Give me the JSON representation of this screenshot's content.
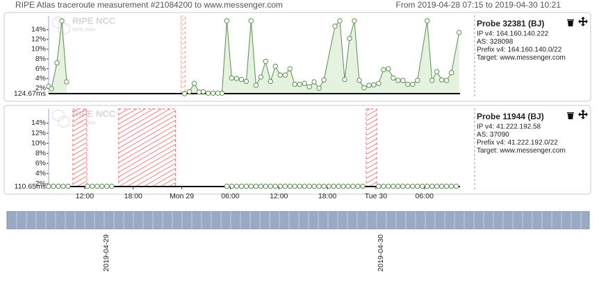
{
  "header": {
    "title": "RIPE Atlas traceroute measurement #21084200 to www.messenger.com",
    "range": "From 2019-04-28 07:15 to 2019-04-30 10:21"
  },
  "xaxis": {
    "xlim": [
      7.54,
      58.4
    ],
    "xticks": [
      {
        "value": 12,
        "label": "12:00"
      },
      {
        "value": 18,
        "label": "18:00"
      },
      {
        "value": 24,
        "label": "Mon 29"
      },
      {
        "value": 30,
        "label": "06:00"
      },
      {
        "value": 36,
        "label": "12:00"
      },
      {
        "value": 42,
        "label": "18:00"
      },
      {
        "value": 48,
        "label": "Tue 30"
      },
      {
        "value": 54,
        "label": "06:00"
      }
    ]
  },
  "probes": [
    {
      "name": "Probe 32381 (BJ)",
      "ip": "IP v4: 164.160.140.222",
      "as": "AS: 328098",
      "prefix": "Prefix v4: 164.160.140.0/22",
      "target": "Target: www.messenger.com",
      "chart": {
        "type": "line",
        "watermark": "RIPE NCC",
        "watermark_sub": "RIPE Atlas",
        "baseline_label": "124.67ms",
        "color": "#5b8f4f",
        "fill": "#e4f2df",
        "ylim": [
          0.9,
          16.8
        ],
        "yticks": [
          {
            "value": 2,
            "label": "2%"
          },
          {
            "value": 4,
            "label": "4%"
          },
          {
            "value": 6,
            "label": "6%"
          },
          {
            "value": 8,
            "label": "8%"
          },
          {
            "value": 10,
            "label": "10%"
          },
          {
            "value": 12,
            "label": "12%"
          },
          {
            "value": 14,
            "label": "14%"
          }
        ],
        "outages": [
          [
            23.91,
            24.43
          ]
        ],
        "x": [
          7.54,
          7.89,
          8.57,
          9.17,
          9.77,
          17,
          24.34,
          24.94,
          25.54,
          26.14,
          26.66,
          27.26,
          27.86,
          28.46,
          28.97,
          29.57,
          30.17,
          30.77,
          31.37,
          31.97,
          32.57,
          33.17,
          33.77,
          34.37,
          34.97,
          35.57,
          36.17,
          36.77,
          37.37,
          37.97,
          38.57,
          39.17,
          39.77,
          40.37,
          40.97,
          41.57,
          42.94,
          43.54,
          44.14,
          44.74,
          45.34,
          45.94,
          46.54,
          47.14,
          47.74,
          48.34,
          48.94,
          49.54,
          50.14,
          50.74,
          51.34,
          51.94,
          52.54,
          53.14,
          54.34,
          54.94,
          55.54,
          56.14,
          56.74,
          57.34,
          58.29
        ],
        "values": [
          2.4,
          1.9,
          7.2,
          15.8,
          3.3,
          null,
          0.9,
          1.3,
          3.0,
          1.2,
          1.3,
          1.0,
          1.0,
          1.0,
          1.0,
          15.8,
          4.1,
          4.0,
          3.8,
          3.4,
          15.8,
          2.6,
          4.3,
          7.5,
          3.4,
          6.5,
          4.7,
          4.7,
          6.0,
          2.8,
          2.8,
          3.0,
          2.3,
          3.3,
          2.0,
          3.7,
          14.7,
          15.8,
          3.8,
          12.2,
          15.8,
          3.6,
          2.1,
          2.6,
          2.7,
          3.0,
          5.8,
          6.0,
          4.1,
          3.6,
          3.6,
          2.8,
          2.8,
          3.6,
          15.8,
          3.6,
          5.4,
          3.7,
          3.6,
          5.2,
          13.4
        ]
      }
    },
    {
      "name": "Probe 11944 (BJ)",
      "ip": "IP v4: 41.222.192.58",
      "as": "AS: 37090",
      "prefix": "Prefix v4: 41.222.192.0/22",
      "target": "Target: www.messenger.com",
      "chart": {
        "type": "line",
        "watermark": "RIPE NCC",
        "watermark_sub": "RIPE Atlas",
        "baseline_label": "110.65ms",
        "color": "#5b8f4f",
        "fill": "#e4f2df",
        "ylim": [
          1.45,
          16.8
        ],
        "yticks": [
          {
            "value": 2,
            "label": "2%"
          },
          {
            "value": 4,
            "label": "4%"
          },
          {
            "value": 6,
            "label": "6%"
          },
          {
            "value": 8,
            "label": "8%"
          },
          {
            "value": 10,
            "label": "10%"
          },
          {
            "value": 12,
            "label": "12%"
          },
          {
            "value": 14,
            "label": "14%"
          }
        ],
        "outages": [
          [
            10.54,
            12.26
          ],
          [
            16.2,
            23.23
          ],
          [
            46.8,
            48.09
          ]
        ],
        "x": [
          7.54,
          8.14,
          8.74,
          9.34,
          9.94,
          11,
          12.34,
          12.94,
          13.54,
          14.14,
          14.74,
          15.34,
          20,
          29.57,
          30.17,
          30.77,
          31.37,
          31.97,
          32.57,
          33.17,
          33.77,
          34.37,
          34.97,
          35.57,
          36.17,
          36.77,
          37.37,
          37.97,
          38.57,
          39.17,
          39.77,
          40.37,
          40.97,
          41.57,
          42.17,
          42.77,
          43.37,
          43.97,
          44.57,
          45.17,
          45.77,
          46.37,
          47.5,
          48.34,
          48.94,
          49.54,
          50.14,
          50.74,
          51.34,
          51.94,
          52.54,
          53.14,
          53.74,
          54.34,
          54.94,
          55.54,
          56.14,
          56.74,
          57.34,
          57.94
        ],
        "values": [
          1.5,
          1.5,
          1.5,
          1.5,
          1.5,
          null,
          1.5,
          1.5,
          1.5,
          1.5,
          1.5,
          1.5,
          null,
          1.5,
          1.5,
          1.5,
          1.5,
          1.5,
          1.5,
          1.5,
          1.5,
          1.5,
          1.5,
          1.5,
          1.5,
          1.5,
          1.5,
          1.5,
          1.5,
          1.5,
          1.5,
          1.5,
          1.5,
          1.5,
          1.5,
          1.5,
          1.5,
          1.5,
          1.5,
          1.5,
          1.5,
          1.5,
          null,
          1.5,
          1.5,
          1.5,
          1.5,
          1.5,
          1.5,
          1.5,
          1.5,
          1.5,
          1.5,
          1.5,
          1.5,
          1.5,
          1.5,
          1.5,
          1.5,
          1.5
        ]
      }
    }
  ],
  "timeline": {
    "labels": [
      "2019-04-29",
      "2019-04-30"
    ]
  }
}
